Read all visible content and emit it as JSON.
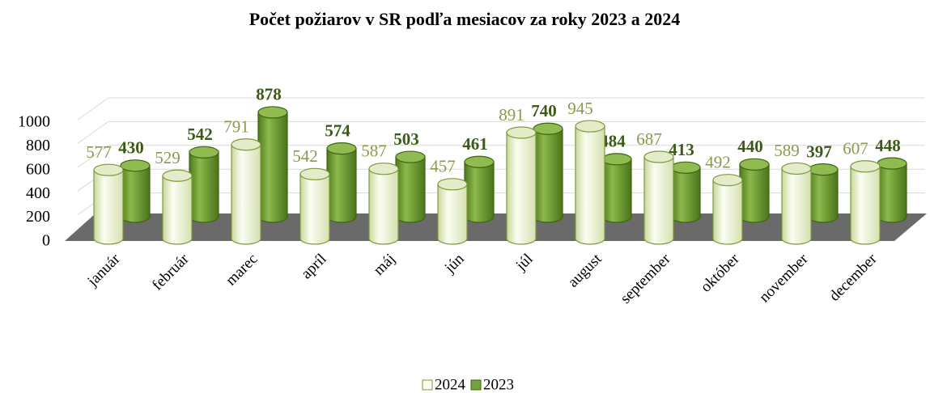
{
  "chart_data": {
    "type": "bar3d",
    "title": "Počet požiarov v SR podľa mesiacov za roky 2023 a 2024",
    "categories": [
      "január",
      "február",
      "marec",
      "apríl",
      "máj",
      "jún",
      "júl",
      "august",
      "september",
      "október",
      "november",
      "december"
    ],
    "series": [
      {
        "name": "2024",
        "color": "#f2f6df",
        "values": [
          577,
          529,
          791,
          542,
          587,
          457,
          891,
          945,
          687,
          492,
          589,
          607
        ]
      },
      {
        "name": "2023",
        "color": "#76a23a",
        "values": [
          430,
          542,
          878,
          574,
          503,
          461,
          740,
          484,
          413,
          440,
          397,
          448
        ]
      }
    ],
    "ylim": [
      0,
      1000
    ],
    "yticks": [
      0,
      200,
      400,
      600,
      800,
      1000
    ],
    "grid": true,
    "legend": "bottom"
  }
}
